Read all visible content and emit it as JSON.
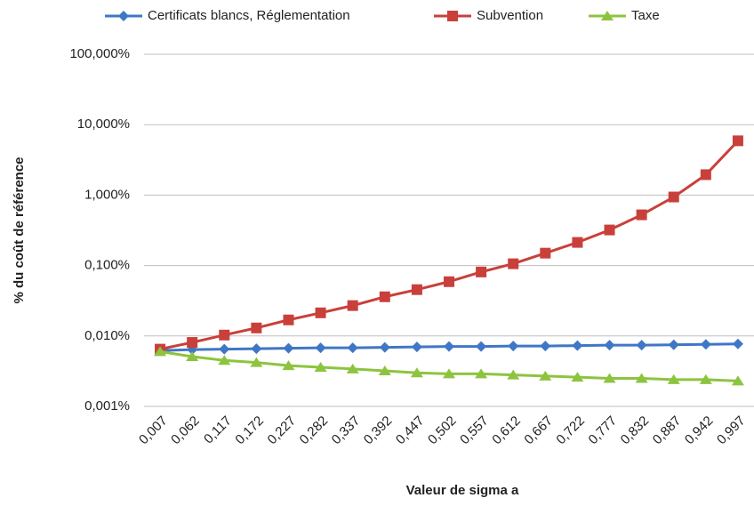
{
  "chart_data": {
    "type": "line",
    "x_label": "Valeur de sigma a",
    "y_label": "% du coût de référence",
    "categories": [
      "0,007",
      "0,062",
      "0,117",
      "0,172",
      "0,227",
      "0,282",
      "0,337",
      "0,392",
      "0,447",
      "0,502",
      "0,557",
      "0,612",
      "0,667",
      "0,722",
      "0,777",
      "0,832",
      "0,887",
      "0,942",
      "0,997"
    ],
    "series": [
      {
        "name": "Certificats blancs, Réglementation",
        "color": "#3f77c6",
        "marker": "diamond",
        "values": [
          0.0062,
          0.0064,
          0.0065,
          0.0066,
          0.0067,
          0.0068,
          0.0068,
          0.0069,
          0.007,
          0.0071,
          0.0071,
          0.0072,
          0.0072,
          0.0073,
          0.0074,
          0.0074,
          0.0075,
          0.0076,
          0.0077
        ]
      },
      {
        "name": "Subvention",
        "color": "#c9403a",
        "marker": "square",
        "values": [
          0.0065,
          0.0081,
          0.0103,
          0.013,
          0.0169,
          0.0213,
          0.027,
          0.036,
          0.0455,
          0.059,
          0.081,
          0.106,
          0.15,
          0.213,
          0.32,
          0.525,
          0.94,
          1.95,
          5.9
        ]
      },
      {
        "name": "Taxe",
        "color": "#8dc43f",
        "marker": "triangle",
        "values": [
          0.006,
          0.0051,
          0.0045,
          0.0042,
          0.0038,
          0.0036,
          0.0034,
          0.0032,
          0.003,
          0.0029,
          0.0029,
          0.0028,
          0.0027,
          0.0026,
          0.0025,
          0.0025,
          0.0024,
          0.0024,
          0.0023
        ]
      }
    ],
    "ylim": [
      0.001,
      100
    ],
    "yticks": [
      {
        "value": 0.001,
        "label": "0,001%"
      },
      {
        "value": 0.01,
        "label": "0,010%"
      },
      {
        "value": 0.1,
        "label": "0,100%"
      },
      {
        "value": 1,
        "label": "1,000%"
      },
      {
        "value": 10,
        "label": "10,000%"
      },
      {
        "value": 100,
        "label": "100,000%"
      }
    ],
    "ylog": true,
    "grid": true,
    "legend": "top"
  }
}
